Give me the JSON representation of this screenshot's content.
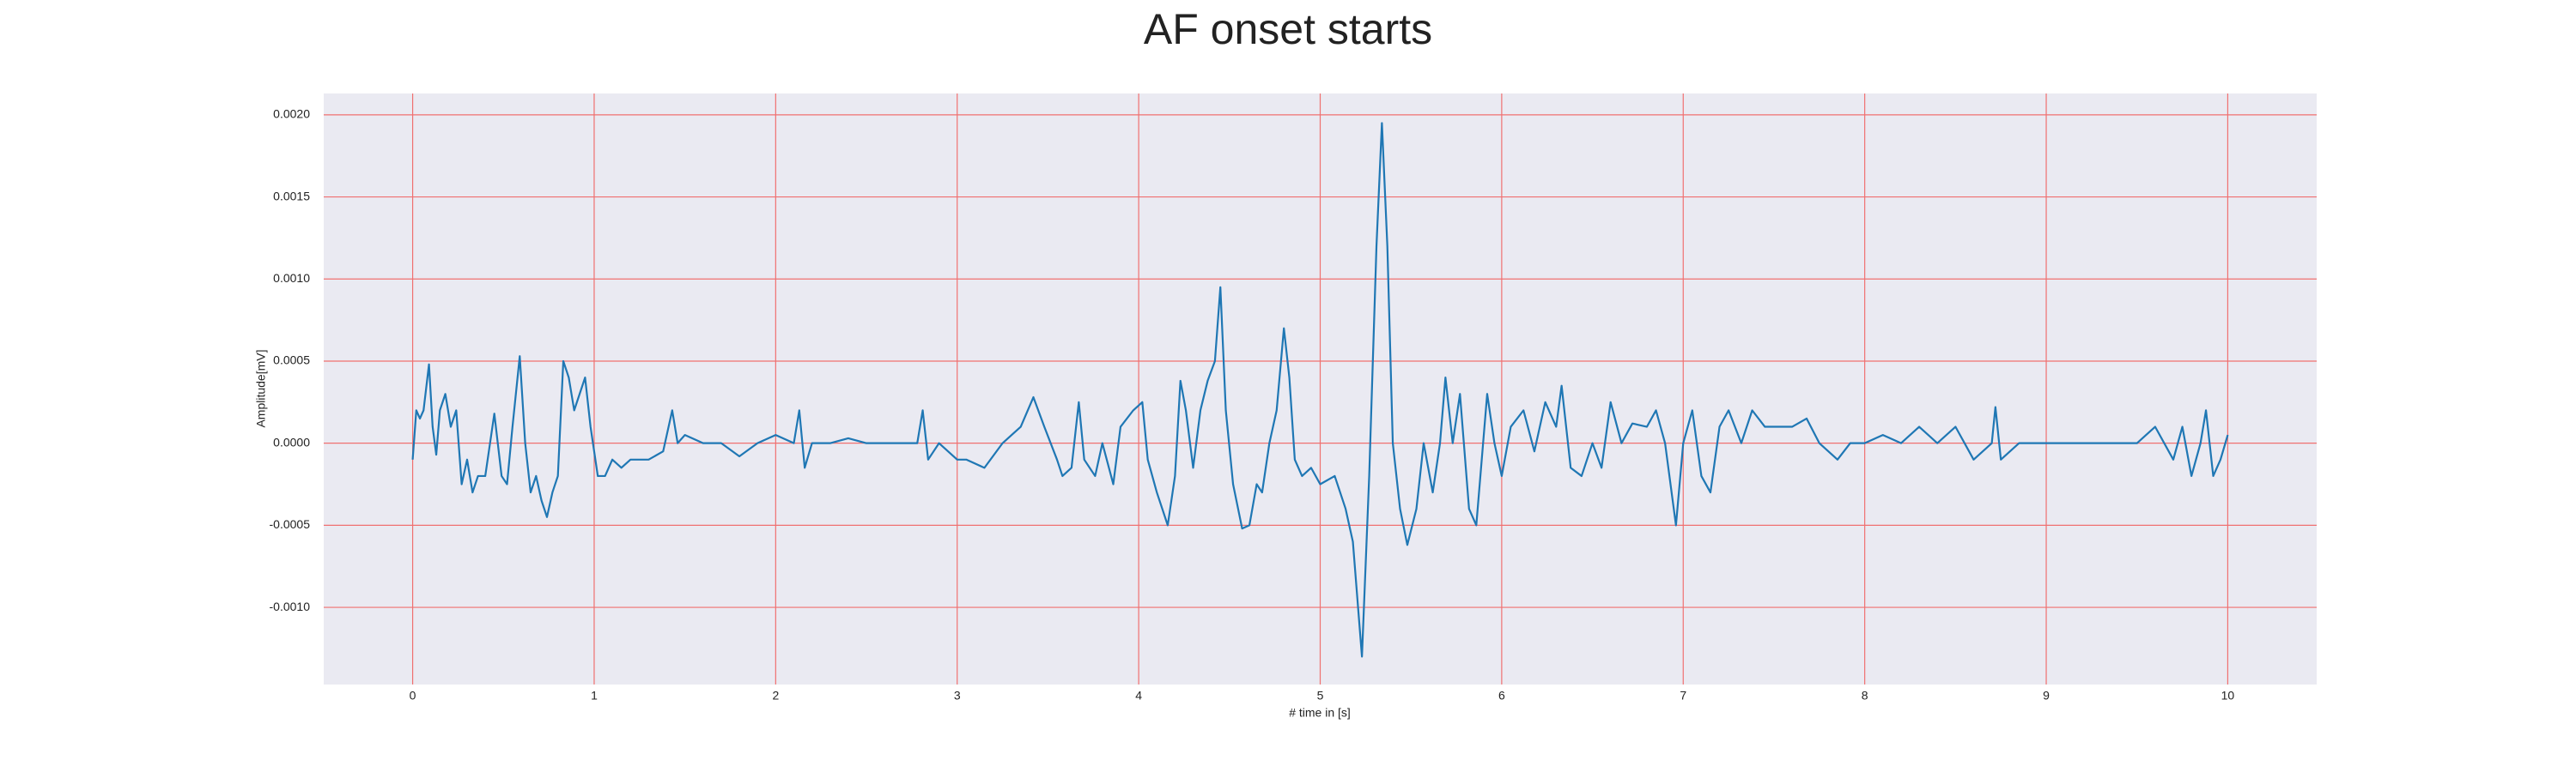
{
  "chart_data": {
    "type": "line",
    "title": "AF onset starts",
    "xlabel": "# time in [s]",
    "ylabel": "Amplitude[mV]",
    "xlim": [
      -0.49,
      10.49
    ],
    "ylim": [
      -0.00147,
      0.00213
    ],
    "xticks": [
      0,
      1,
      2,
      3,
      4,
      5,
      6,
      7,
      8,
      9,
      10
    ],
    "yticks": [
      {
        "value": -0.001,
        "label": "-0.0010"
      },
      {
        "value": -0.0005,
        "label": "-0.0005"
      },
      {
        "value": 0,
        "label": "0.0000"
      },
      {
        "value": 0.0005,
        "label": "0.0005"
      },
      {
        "value": 0.001,
        "label": "0.0010"
      },
      {
        "value": 0.0015,
        "label": "0.0015"
      },
      {
        "value": 0.002,
        "label": "0.0020"
      }
    ],
    "grid": true,
    "grid_color": "#f07070",
    "background": "#eaeaf2",
    "color": "#1f77b4",
    "x": [
      0,
      0.02,
      0.04,
      0.06,
      0.09,
      0.11,
      0.13,
      0.15,
      0.18,
      0.21,
      0.24,
      0.27,
      0.3,
      0.33,
      0.36,
      0.4,
      0.45,
      0.49,
      0.52,
      0.55,
      0.59,
      0.62,
      0.65,
      0.68,
      0.71,
      0.74,
      0.77,
      0.8,
      0.83,
      0.86,
      0.89,
      0.92,
      0.95,
      0.98,
      1.02,
      1.06,
      1.1,
      1.15,
      1.2,
      1.3,
      1.38,
      1.43,
      1.46,
      1.5,
      1.6,
      1.7,
      1.8,
      1.9,
      2,
      2.1,
      2.13,
      2.16,
      2.2,
      2.3,
      2.4,
      2.5,
      2.6,
      2.7,
      2.78,
      2.81,
      2.84,
      2.9,
      3,
      3.05,
      3.15,
      3.25,
      3.35,
      3.42,
      3.48,
      3.55,
      3.58,
      3.63,
      3.67,
      3.7,
      3.76,
      3.8,
      3.86,
      3.9,
      3.97,
      4.02,
      4.05,
      4.1,
      4.16,
      4.2,
      4.23,
      4.26,
      4.3,
      4.34,
      4.38,
      4.42,
      4.45,
      4.48,
      4.52,
      4.57,
      4.61,
      4.65,
      4.68,
      4.72,
      4.76,
      4.8,
      4.83,
      4.86,
      4.9,
      4.95,
      5,
      5.08,
      5.14,
      5.18,
      5.23,
      5.27,
      5.31,
      5.34,
      5.37,
      5.4,
      5.44,
      5.48,
      5.53,
      5.57,
      5.62,
      5.66,
      5.69,
      5.73,
      5.77,
      5.82,
      5.86,
      5.92,
      5.96,
      6,
      6.05,
      6.12,
      6.18,
      6.24,
      6.3,
      6.33,
      6.38,
      6.44,
      6.5,
      6.55,
      6.6,
      6.66,
      6.72,
      6.8,
      6.85,
      6.9,
      6.96,
      7,
      7.05,
      7.1,
      7.15,
      7.2,
      7.25,
      7.32,
      7.38,
      7.45,
      7.52,
      7.6,
      7.68,
      7.75,
      7.85,
      7.92,
      8,
      8.1,
      8.2,
      8.3,
      8.4,
      8.5,
      8.6,
      8.7,
      8.72,
      8.75,
      8.85,
      9,
      9.1,
      9.2,
      9.3,
      9.4,
      9.5,
      9.6,
      9.7,
      9.75,
      9.8,
      9.85,
      9.88,
      9.92,
      9.96,
      10
    ],
    "y": [
      -0.0001,
      0.0002,
      0.00015,
      0.0002,
      0.00048,
      0.0001,
      -7e-05,
      0.0002,
      0.0003,
      0.0001,
      0.0002,
      -0.00025,
      -0.0001,
      -0.0003,
      -0.0002,
      -0.0002,
      0.00018,
      -0.0002,
      -0.00025,
      0.0001,
      0.00053,
      0,
      -0.0003,
      -0.0002,
      -0.00035,
      -0.00045,
      -0.0003,
      -0.0002,
      0.0005,
      0.0004,
      0.0002,
      0.0003,
      0.0004,
      0.0001,
      -0.0002,
      -0.0002,
      -0.0001,
      -0.00015,
      -0.0001,
      -0.0001,
      -5e-05,
      0.0002,
      0,
      5e-05,
      0,
      0,
      -8e-05,
      0,
      5e-05,
      0,
      0.0002,
      -0.00015,
      0,
      0,
      3e-05,
      0,
      0,
      0,
      0,
      0.0002,
      -0.0001,
      0,
      -0.0001,
      -0.0001,
      -0.00015,
      0,
      0.0001,
      0.00028,
      0.0001,
      -0.0001,
      -0.0002,
      -0.00015,
      0.00025,
      -0.0001,
      -0.0002,
      0,
      -0.00025,
      0.0001,
      0.0002,
      0.00025,
      -0.0001,
      -0.0003,
      -0.0005,
      -0.0002,
      0.00038,
      0.0002,
      -0.00015,
      0.0002,
      0.00038,
      0.0005,
      0.00095,
      0.0002,
      -0.00025,
      -0.00052,
      -0.0005,
      -0.00025,
      -0.0003,
      0,
      0.0002,
      0.0007,
      0.0004,
      -0.0001,
      -0.0002,
      -0.00015,
      -0.00025,
      -0.0002,
      -0.0004,
      -0.0006,
      -0.0013,
      -0.0002,
      0.0012,
      0.00195,
      0.0012,
      0,
      -0.0004,
      -0.00062,
      -0.0004,
      0,
      -0.0003,
      0,
      0.0004,
      0,
      0.0003,
      -0.0004,
      -0.0005,
      0.0003,
      0,
      -0.0002,
      0.0001,
      0.0002,
      -5e-05,
      0.00025,
      0.0001,
      0.00035,
      -0.00015,
      -0.0002,
      0,
      -0.00015,
      0.00025,
      0,
      0.00012,
      0.0001,
      0.0002,
      0,
      -0.0005,
      0,
      0.0002,
      -0.0002,
      -0.0003,
      0.0001,
      0.0002,
      0,
      0.0002,
      0.0001,
      0.0001,
      0.0001,
      0.00015,
      0,
      -0.0001,
      0,
      0,
      5e-05,
      0,
      0.0001,
      0,
      0.0001,
      -0.0001,
      0,
      0.00022,
      -0.0001,
      0,
      0,
      0,
      0,
      0,
      0,
      0,
      0.0001,
      -0.0001,
      0.0001,
      -0.0002,
      0,
      0.0002,
      -0.0002,
      -0.0001,
      5e-05
    ]
  }
}
